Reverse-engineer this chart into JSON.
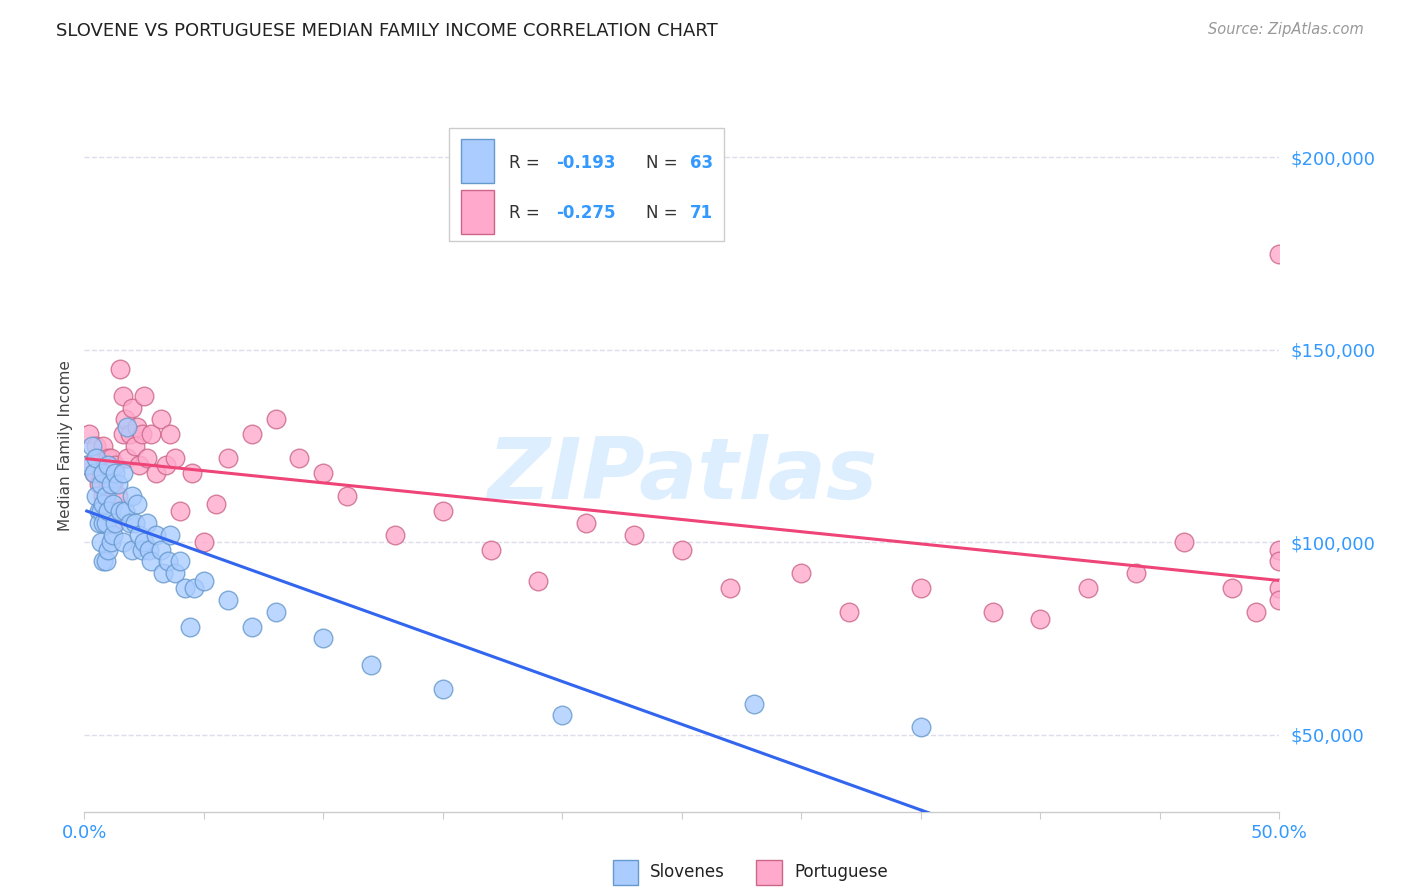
{
  "title": "SLOVENE VS PORTUGUESE MEDIAN FAMILY INCOME CORRELATION CHART",
  "source": "Source: ZipAtlas.com",
  "ylabel": "Median Family Income",
  "xlim": [
    0.0,
    0.5
  ],
  "ylim": [
    30000,
    220000
  ],
  "xtick_positions": [
    0.0,
    0.05,
    0.1,
    0.15,
    0.2,
    0.25,
    0.3,
    0.35,
    0.4,
    0.45,
    0.5
  ],
  "ytick_positions": [
    50000,
    100000,
    150000,
    200000
  ],
  "ytick_labels": [
    "$50,000",
    "$100,000",
    "$150,000",
    "$200,000"
  ],
  "ytick_color": "#3399ff",
  "xtick_color": "#3399ff",
  "slovene_color": "#aaccff",
  "slovene_edge_color": "#6699cc",
  "portuguese_color": "#ffaacc",
  "portuguese_edge_color": "#cc6688",
  "slovene_line_color": "#3366ee",
  "portuguese_line_color": "#ee4477",
  "watermark_color": "#ddeeff",
  "background_color": "#ffffff",
  "grid_color": "#ddddee",
  "slovene_x": [
    0.001,
    0.003,
    0.004,
    0.005,
    0.005,
    0.006,
    0.006,
    0.007,
    0.007,
    0.007,
    0.008,
    0.008,
    0.008,
    0.008,
    0.009,
    0.009,
    0.009,
    0.01,
    0.01,
    0.01,
    0.011,
    0.011,
    0.012,
    0.012,
    0.013,
    0.013,
    0.014,
    0.015,
    0.016,
    0.016,
    0.017,
    0.018,
    0.019,
    0.02,
    0.02,
    0.021,
    0.022,
    0.023,
    0.024,
    0.025,
    0.026,
    0.027,
    0.028,
    0.03,
    0.032,
    0.033,
    0.035,
    0.036,
    0.038,
    0.04,
    0.042,
    0.044,
    0.046,
    0.05,
    0.06,
    0.07,
    0.08,
    0.1,
    0.12,
    0.15,
    0.2,
    0.28,
    0.35
  ],
  "slovene_y": [
    120000,
    125000,
    118000,
    112000,
    122000,
    108000,
    105000,
    115000,
    108000,
    100000,
    118000,
    110000,
    95000,
    105000,
    112000,
    105000,
    95000,
    120000,
    108000,
    98000,
    115000,
    100000,
    110000,
    102000,
    118000,
    105000,
    115000,
    108000,
    118000,
    100000,
    108000,
    130000,
    105000,
    112000,
    98000,
    105000,
    110000,
    102000,
    98000,
    100000,
    105000,
    98000,
    95000,
    102000,
    98000,
    92000,
    95000,
    102000,
    92000,
    95000,
    88000,
    78000,
    88000,
    90000,
    85000,
    78000,
    82000,
    75000,
    68000,
    62000,
    55000,
    58000,
    52000
  ],
  "portuguese_x": [
    0.001,
    0.002,
    0.004,
    0.005,
    0.006,
    0.006,
    0.007,
    0.008,
    0.008,
    0.009,
    0.009,
    0.01,
    0.01,
    0.011,
    0.011,
    0.012,
    0.012,
    0.013,
    0.014,
    0.015,
    0.016,
    0.016,
    0.017,
    0.018,
    0.019,
    0.02,
    0.021,
    0.022,
    0.023,
    0.024,
    0.025,
    0.026,
    0.028,
    0.03,
    0.032,
    0.034,
    0.036,
    0.038,
    0.04,
    0.045,
    0.05,
    0.055,
    0.06,
    0.07,
    0.08,
    0.09,
    0.1,
    0.11,
    0.13,
    0.15,
    0.17,
    0.19,
    0.21,
    0.23,
    0.25,
    0.27,
    0.3,
    0.32,
    0.35,
    0.38,
    0.4,
    0.42,
    0.44,
    0.46,
    0.48,
    0.49,
    0.5,
    0.5,
    0.5,
    0.5,
    0.5
  ],
  "portuguese_y": [
    120000,
    128000,
    118000,
    125000,
    115000,
    122000,
    118000,
    112000,
    125000,
    120000,
    108000,
    122000,
    115000,
    108000,
    122000,
    115000,
    105000,
    120000,
    112000,
    145000,
    138000,
    128000,
    132000,
    122000,
    128000,
    135000,
    125000,
    130000,
    120000,
    128000,
    138000,
    122000,
    128000,
    118000,
    132000,
    120000,
    128000,
    122000,
    108000,
    118000,
    100000,
    110000,
    122000,
    128000,
    132000,
    122000,
    118000,
    112000,
    102000,
    108000,
    98000,
    90000,
    105000,
    102000,
    98000,
    88000,
    92000,
    82000,
    88000,
    82000,
    80000,
    88000,
    92000,
    100000,
    88000,
    82000,
    98000,
    95000,
    88000,
    85000,
    175000
  ],
  "slovene_line_x_end": 0.35,
  "slovene_line_x_dash_end": 0.5
}
